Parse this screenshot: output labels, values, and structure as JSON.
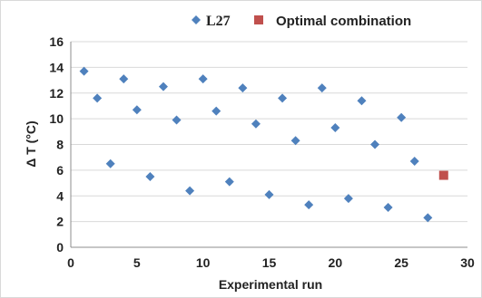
{
  "chart_data": {
    "type": "scatter",
    "title": "",
    "xlabel": "Experimental run",
    "ylabel": "Δ T (°C)",
    "xlim": [
      0,
      30
    ],
    "ylim": [
      0,
      16
    ],
    "x_ticks": [
      0,
      5,
      10,
      15,
      20,
      25,
      30
    ],
    "y_ticks": [
      0,
      2,
      4,
      6,
      8,
      10,
      12,
      14,
      16
    ],
    "grid": "horizontal",
    "legend_position": "top",
    "series": [
      {
        "name": "L27",
        "marker": "diamond",
        "color": "#4f81bd",
        "points": [
          [
            1,
            13.7
          ],
          [
            2,
            11.6
          ],
          [
            3,
            6.5
          ],
          [
            4,
            13.1
          ],
          [
            5,
            10.7
          ],
          [
            6,
            5.5
          ],
          [
            7,
            12.5
          ],
          [
            8,
            9.9
          ],
          [
            9,
            4.4
          ],
          [
            10,
            13.1
          ],
          [
            11,
            10.6
          ],
          [
            12,
            5.1
          ],
          [
            13,
            12.4
          ],
          [
            14,
            9.6
          ],
          [
            15,
            4.1
          ],
          [
            16,
            11.6
          ],
          [
            17,
            8.3
          ],
          [
            18,
            3.3
          ],
          [
            19,
            12.4
          ],
          [
            20,
            9.3
          ],
          [
            21,
            3.8
          ],
          [
            22,
            11.4
          ],
          [
            23,
            8.0
          ],
          [
            24,
            3.1
          ],
          [
            25,
            10.1
          ],
          [
            26,
            6.7
          ],
          [
            27,
            2.3
          ]
        ]
      },
      {
        "name": "Optimal combination",
        "marker": "square",
        "color": "#c0504d",
        "points": [
          [
            28.2,
            5.6
          ]
        ]
      }
    ]
  }
}
